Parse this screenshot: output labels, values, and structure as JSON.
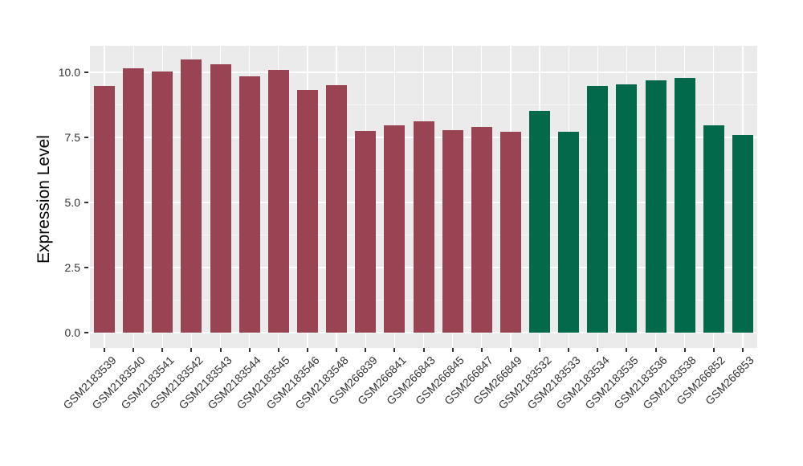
{
  "chart_data": {
    "type": "bar",
    "title": "",
    "xlabel": "",
    "ylabel": "Expression Level",
    "categories": [
      "GSM2183539",
      "GSM2183540",
      "GSM2183541",
      "GSM2183542",
      "GSM2183543",
      "GSM2183544",
      "GSM2183545",
      "GSM2183546",
      "GSM2183548",
      "GSM266839",
      "GSM266841",
      "GSM266843",
      "GSM266845",
      "GSM266847",
      "GSM266849",
      "GSM2183532",
      "GSM2183533",
      "GSM2183534",
      "GSM2183535",
      "GSM2183536",
      "GSM2183538",
      "GSM266852",
      "GSM266853"
    ],
    "values": [
      9.47,
      10.17,
      10.02,
      10.5,
      10.32,
      9.85,
      10.09,
      9.32,
      9.52,
      7.75,
      7.96,
      8.11,
      7.77,
      7.9,
      7.73,
      8.51,
      7.73,
      9.47,
      9.53,
      9.68,
      9.77,
      7.96,
      7.58
    ],
    "groups": [
      "maroon",
      "maroon",
      "maroon",
      "maroon",
      "maroon",
      "maroon",
      "maroon",
      "maroon",
      "maroon",
      "maroon",
      "maroon",
      "maroon",
      "maroon",
      "maroon",
      "maroon",
      "green",
      "green",
      "green",
      "green",
      "green",
      "green",
      "green",
      "green"
    ],
    "group_colors": {
      "maroon": "#9A4453",
      "green": "#02694B"
    },
    "ylim": [
      0,
      11.02
    ],
    "yticks": [
      0,
      2.5,
      5,
      7.5,
      10
    ],
    "ytick_labels": [
      "0.0",
      "2.5",
      "5.0",
      "7.5",
      "10.0"
    ],
    "yminor_ticks": [
      1.25,
      3.75,
      6.25,
      8.75
    ],
    "grid": "major-and-minor-white",
    "legend_position": "none",
    "panel_bg": "#EBEBEB",
    "grid_color": "#FFFFFF",
    "tick_text_color": "#333333",
    "axis_title_color": "#000000"
  }
}
